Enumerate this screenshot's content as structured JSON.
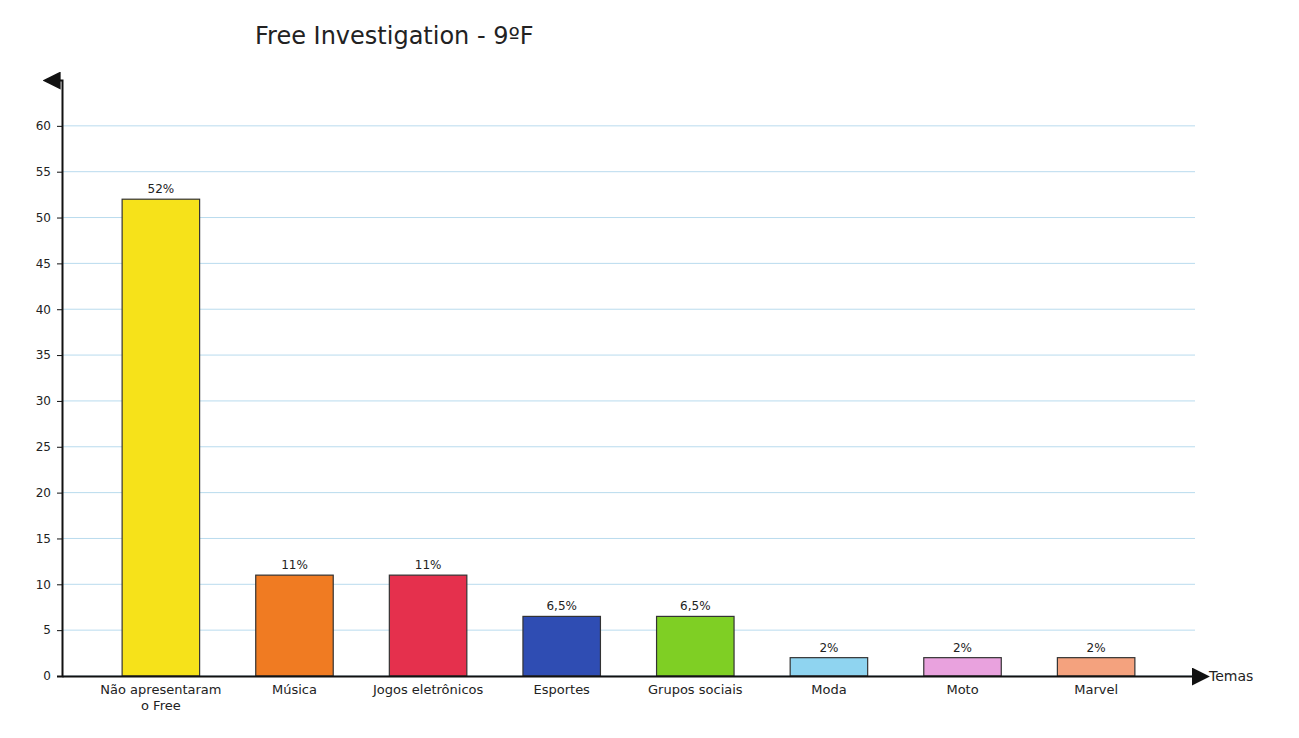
{
  "chart_data": {
    "type": "bar",
    "title": "Free Investigation - 9ºF",
    "x_label": "Temas",
    "categories": [
      "Não apresentaram o Free",
      "Música",
      "Jogos eletrônicos",
      "Esportes",
      "Grupos sociais",
      "Moda",
      "Moto",
      "Marvel"
    ],
    "values": [
      52,
      11,
      11,
      6.5,
      6.5,
      2,
      2,
      2
    ],
    "value_labels": [
      "52%",
      "11%",
      "11%",
      "6,5%",
      "6,5%",
      "2%",
      "2%",
      "2%"
    ],
    "colors": [
      "#f6e21a",
      "#f07b22",
      "#e5304d",
      "#2f4db3",
      "#7fcf24",
      "#8fd4f0",
      "#e9a2de",
      "#f4a27e"
    ],
    "ylim": [
      0,
      65
    ],
    "yticks": [
      0,
      5,
      10,
      15,
      20,
      25,
      30,
      35,
      40,
      45,
      50,
      55,
      60
    ],
    "grid": true,
    "data_labels": true
  }
}
